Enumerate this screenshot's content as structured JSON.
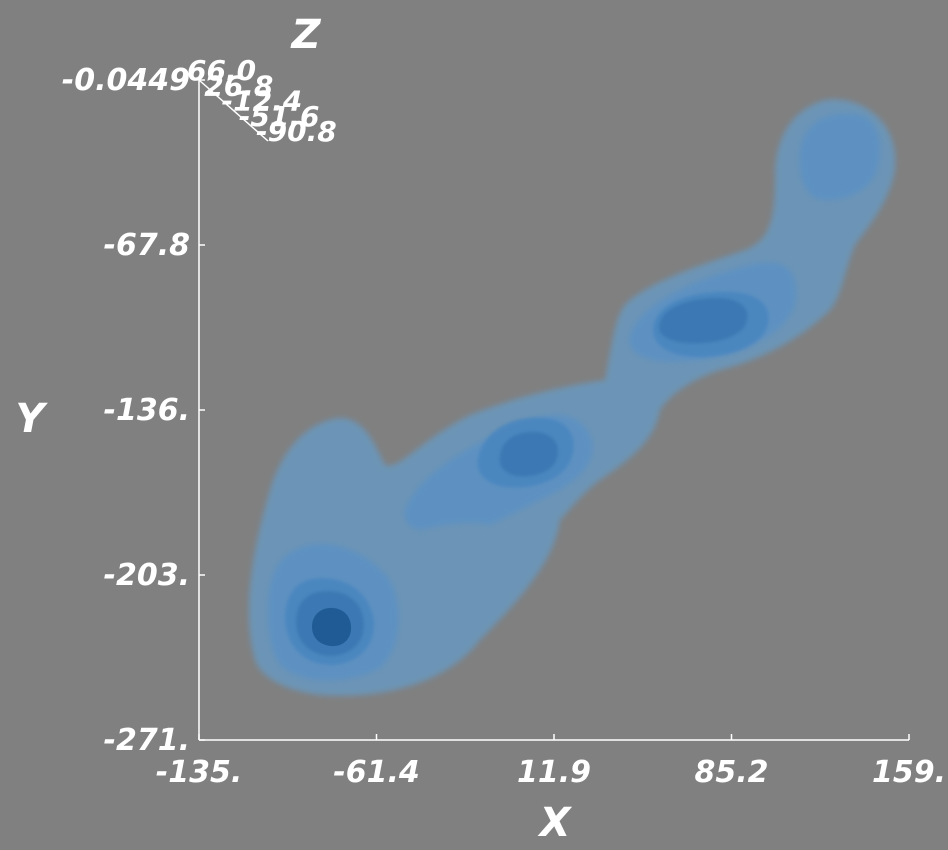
{
  "chart_data": {
    "type": "3d-isosurface",
    "axes": {
      "x": {
        "label": "X",
        "range": [
          -135,
          159
        ],
        "ticks": [
          "-135.",
          "-61.4",
          "11.9",
          "85.2",
          "159."
        ]
      },
      "y": {
        "label": "Y",
        "range": [
          -271,
          -0.0449
        ],
        "ticks": [
          "-0.0449",
          "-67.8",
          "-136.",
          "-203.",
          "-271."
        ]
      },
      "z": {
        "label": "Z",
        "ticks": [
          "66.0",
          "26.8",
          "-12.4",
          "-51.6",
          "-90.8"
        ]
      }
    },
    "grid": false,
    "colors": {
      "background": "#808080",
      "axis": "#ffffff",
      "surface_levels": [
        "#6d9bc0",
        "#5d93c5",
        "#4a86bf",
        "#3a77b2",
        "#2a68a2",
        "#1a4f85"
      ]
    },
    "density_peaks": [
      {
        "x": -90,
        "y": -228,
        "level": 6
      },
      {
        "x": 9,
        "y": -152,
        "level": 5
      },
      {
        "x": 77,
        "y": -93,
        "level": 6
      },
      {
        "x": 128,
        "y": -30,
        "level": 3
      }
    ]
  }
}
